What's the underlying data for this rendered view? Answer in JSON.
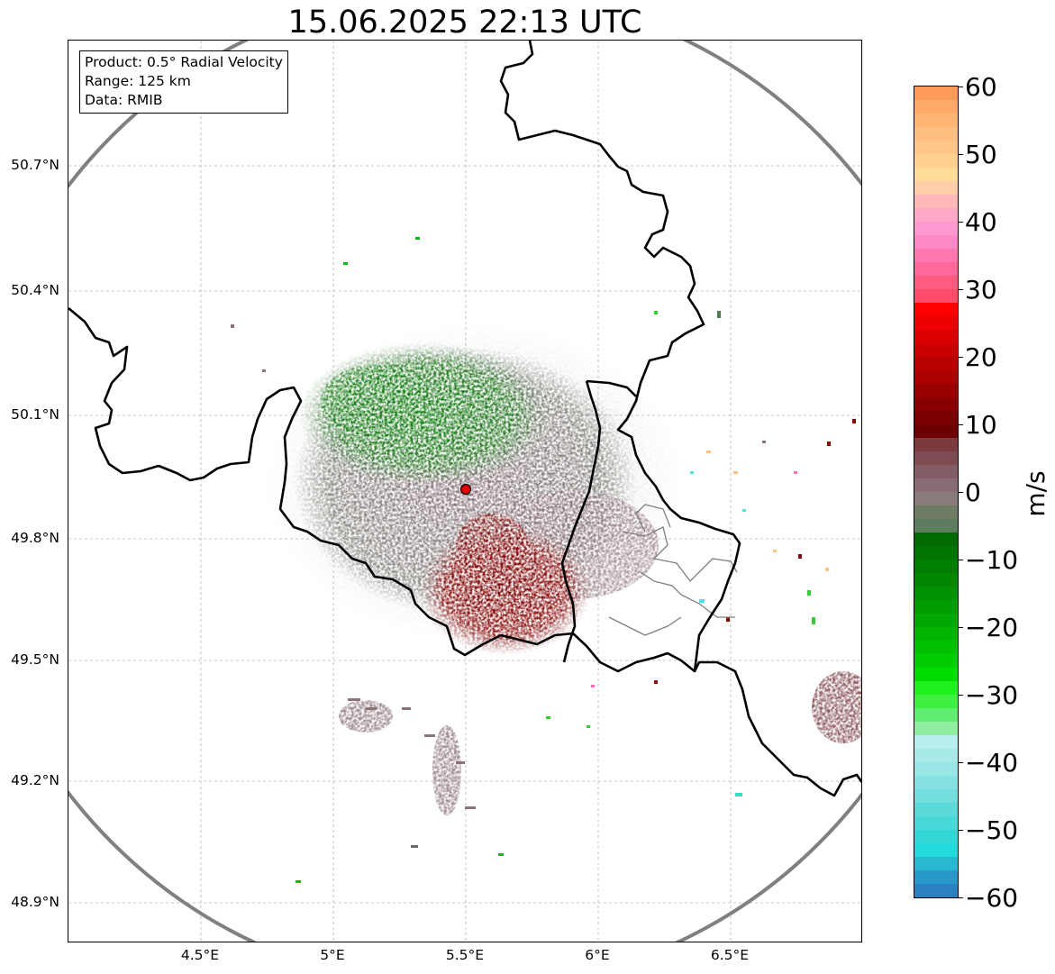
{
  "title": "15.06.2025 22:13 UTC",
  "info": {
    "product": "Product: 0.5° Radial Velocity",
    "range": "Range: 125 km",
    "data": "Data: RMIB"
  },
  "lat_labels": [
    "50.7°N",
    "50.4°N",
    "50.1°N",
    "49.8°N",
    "49.5°N",
    "49.2°N",
    "48.9°N"
  ],
  "lon_labels": [
    "4.5°E",
    "5°E",
    "5.5°E",
    "6°E",
    "6.5°E"
  ],
  "colorbar": {
    "unit": "m/s",
    "tick_labels": [
      "60",
      "50",
      "40",
      "30",
      "20",
      "10",
      "0",
      "−10",
      "−20",
      "−30",
      "−40",
      "−50",
      "−60"
    ],
    "min": -60,
    "max": 60
  },
  "colors": {
    "approaching_green": "#0a7a0a",
    "receding_red": "#7a0000",
    "near_zero_gray": "#8a7478",
    "range_ring": "#808080",
    "radar_site": "#e00000"
  }
}
